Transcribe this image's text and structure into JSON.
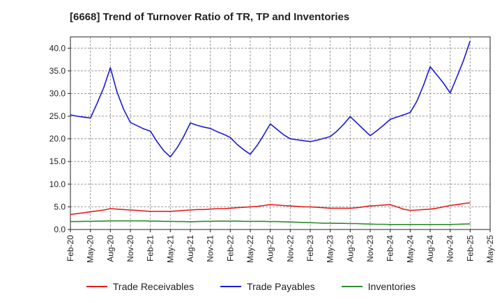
{
  "chart_data": {
    "type": "line",
    "title": "[6668]  Trend of Turnover Ratio of TR, TP and Inventories",
    "xlabel": "",
    "ylabel": "",
    "ylim": [
      0,
      42.5
    ],
    "yticks": [
      "0.0",
      "5.0",
      "10.0",
      "15.0",
      "20.0",
      "25.0",
      "30.0",
      "35.0",
      "40.0"
    ],
    "x_tick_labels": [
      "Feb-20",
      "May-20",
      "Aug-20",
      "Nov-20",
      "Feb-21",
      "May-21",
      "Aug-21",
      "Nov-21",
      "Feb-22",
      "May-22",
      "Aug-22",
      "Nov-22",
      "Feb-23",
      "May-23",
      "Aug-23",
      "Nov-23",
      "Feb-24",
      "May-24",
      "Aug-24",
      "Nov-24",
      "Feb-25",
      "May-25"
    ],
    "x": [
      "Feb-20",
      "Mar-20",
      "Apr-20",
      "May-20",
      "Jun-20",
      "Jul-20",
      "Aug-20",
      "Sep-20",
      "Oct-20",
      "Nov-20",
      "Dec-20",
      "Jan-21",
      "Feb-21",
      "Mar-21",
      "Apr-21",
      "May-21",
      "Jun-21",
      "Jul-21",
      "Aug-21",
      "Sep-21",
      "Oct-21",
      "Nov-21",
      "Dec-21",
      "Jan-22",
      "Feb-22",
      "Mar-22",
      "Apr-22",
      "May-22",
      "Jun-22",
      "Jul-22",
      "Aug-22",
      "Sep-22",
      "Oct-22",
      "Nov-22",
      "Dec-22",
      "Jan-23",
      "Feb-23",
      "Mar-23",
      "Apr-23",
      "May-23",
      "Jun-23",
      "Jul-23",
      "Aug-23",
      "Sep-23",
      "Oct-23",
      "Nov-23",
      "Dec-23",
      "Jan-24",
      "Feb-24",
      "Mar-24",
      "Apr-24",
      "May-24",
      "Jun-24",
      "Jul-24",
      "Aug-24",
      "Sep-24",
      "Oct-24",
      "Nov-24",
      "Dec-24",
      "Jan-25",
      "Feb-25"
    ],
    "grid": true,
    "legend_position": "bottom",
    "series": [
      {
        "name": "Trade Receivables",
        "color": "#e81c1c",
        "values": [
          3.3,
          3.5,
          3.7,
          3.9,
          4.1,
          4.3,
          4.6,
          4.5,
          4.4,
          4.3,
          4.2,
          4.1,
          4.0,
          4.0,
          4.0,
          4.0,
          4.1,
          4.2,
          4.3,
          4.4,
          4.4,
          4.5,
          4.6,
          4.6,
          4.7,
          4.8,
          4.9,
          5.0,
          5.1,
          5.3,
          5.5,
          5.4,
          5.3,
          5.2,
          5.1,
          5.0,
          5.0,
          4.9,
          4.8,
          4.7,
          4.7,
          4.7,
          4.7,
          4.8,
          5.0,
          5.2,
          5.3,
          5.4,
          5.5,
          5.0,
          4.5,
          4.2,
          4.3,
          4.4,
          4.5,
          4.7,
          5.0,
          5.3,
          5.5,
          5.7,
          5.9
        ]
      },
      {
        "name": "Trade Payables",
        "color": "#1a1ad6",
        "values": [
          25.3,
          25.0,
          24.8,
          24.6,
          27.8,
          31.3,
          35.7,
          30.3,
          26.5,
          23.6,
          22.9,
          22.2,
          21.7,
          19.4,
          17.4,
          16.0,
          18.0,
          20.5,
          23.5,
          23.0,
          22.6,
          22.3,
          21.6,
          21.0,
          20.3,
          18.8,
          17.6,
          16.6,
          18.5,
          20.8,
          23.3,
          22.1,
          20.9,
          20.0,
          19.8,
          19.6,
          19.4,
          19.7,
          20.1,
          20.5,
          21.7,
          23.2,
          24.9,
          23.5,
          22.1,
          20.7,
          21.8,
          23.0,
          24.3,
          24.8,
          25.3,
          25.8,
          28.3,
          31.8,
          35.9,
          34.1,
          32.3,
          30.1,
          33.6,
          37.3,
          41.6
        ]
      },
      {
        "name": "Inventories",
        "color": "#2a8c2a",
        "values": [
          1.75,
          1.75,
          1.8,
          1.8,
          1.85,
          1.85,
          1.9,
          1.9,
          1.9,
          1.9,
          1.9,
          1.9,
          1.85,
          1.85,
          1.8,
          1.8,
          1.75,
          1.75,
          1.7,
          1.75,
          1.8,
          1.8,
          1.85,
          1.85,
          1.85,
          1.85,
          1.8,
          1.8,
          1.8,
          1.8,
          1.75,
          1.75,
          1.7,
          1.65,
          1.6,
          1.55,
          1.5,
          1.45,
          1.4,
          1.4,
          1.35,
          1.35,
          1.3,
          1.3,
          1.25,
          1.2,
          1.15,
          1.15,
          1.1,
          1.1,
          1.1,
          1.1,
          1.1,
          1.1,
          1.1,
          1.1,
          1.1,
          1.1,
          1.15,
          1.2,
          1.25
        ]
      }
    ]
  }
}
